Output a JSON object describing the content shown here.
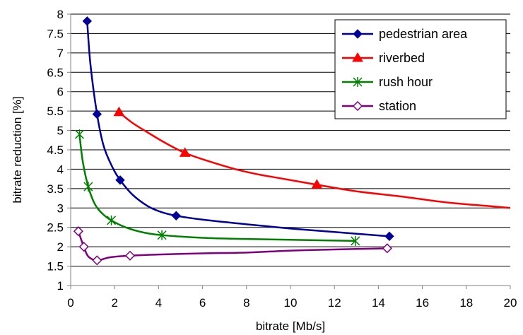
{
  "chart_data": {
    "type": "line",
    "xlabel": "bitrate [Mb/s]",
    "ylabel": "bitrate reduction [%]",
    "xlim": [
      0,
      20
    ],
    "ylim": [
      1,
      8
    ],
    "xticks": [
      0,
      2,
      4,
      6,
      8,
      10,
      12,
      14,
      16,
      18,
      20
    ],
    "yticks": [
      1,
      1.5,
      2,
      2.5,
      3,
      3.5,
      4,
      4.5,
      5,
      5.5,
      6,
      6.5,
      7,
      7.5,
      8
    ],
    "grid": "horizontal",
    "legend_position": "top-right",
    "series": [
      {
        "name": "pedestrian area",
        "color": "#000099",
        "marker": "diamond",
        "points": [
          [
            0.75,
            7.82
          ],
          [
            1.2,
            5.42
          ],
          [
            2.25,
            3.72
          ],
          [
            4.8,
            2.8
          ],
          [
            14.5,
            2.27
          ]
        ],
        "curve": [
          [
            0.75,
            7.82
          ],
          [
            0.9,
            6.7
          ],
          [
            1.2,
            5.42
          ],
          [
            1.5,
            4.6
          ],
          [
            1.9,
            4.05
          ],
          [
            2.25,
            3.72
          ],
          [
            2.8,
            3.35
          ],
          [
            3.5,
            3.05
          ],
          [
            4.1,
            2.9
          ],
          [
            4.8,
            2.8
          ],
          [
            6,
            2.7
          ],
          [
            8,
            2.58
          ],
          [
            10,
            2.47
          ],
          [
            12,
            2.38
          ],
          [
            14.5,
            2.27
          ]
        ]
      },
      {
        "name": "riverbed",
        "color": "#ff0000",
        "marker": "triangle",
        "points": [
          [
            2.2,
            5.47
          ],
          [
            5.2,
            4.42
          ],
          [
            11.2,
            3.6
          ]
        ],
        "curve": [
          [
            2.2,
            5.47
          ],
          [
            2.8,
            5.2
          ],
          [
            3.5,
            4.95
          ],
          [
            4.3,
            4.68
          ],
          [
            5.2,
            4.42
          ],
          [
            6.2,
            4.22
          ],
          [
            7.5,
            4.0
          ],
          [
            8.5,
            3.87
          ],
          [
            9.5,
            3.77
          ],
          [
            11.2,
            3.6
          ],
          [
            13,
            3.43
          ],
          [
            15,
            3.3
          ],
          [
            17,
            3.15
          ],
          [
            19,
            3.05
          ],
          [
            20,
            3.0
          ]
        ]
      },
      {
        "name": "rush hour",
        "color": "#008000",
        "marker": "asterisk",
        "points": [
          [
            0.4,
            4.9
          ],
          [
            0.8,
            3.55
          ],
          [
            1.85,
            2.68
          ],
          [
            4.15,
            2.3
          ],
          [
            12.95,
            2.15
          ]
        ],
        "curve": [
          [
            0.4,
            4.9
          ],
          [
            0.55,
            4.2
          ],
          [
            0.8,
            3.55
          ],
          [
            1.1,
            3.1
          ],
          [
            1.45,
            2.85
          ],
          [
            1.85,
            2.68
          ],
          [
            2.5,
            2.5
          ],
          [
            3.3,
            2.37
          ],
          [
            4.15,
            2.3
          ],
          [
            6,
            2.23
          ],
          [
            8,
            2.2
          ],
          [
            10,
            2.18
          ],
          [
            12.95,
            2.15
          ]
        ]
      },
      {
        "name": "station",
        "color": "#7f007f",
        "marker": "open-diamond",
        "points": [
          [
            0.35,
            2.4
          ],
          [
            0.6,
            2.0
          ],
          [
            1.2,
            1.65
          ],
          [
            2.7,
            1.77
          ],
          [
            14.4,
            1.96
          ]
        ],
        "curve": [
          [
            0.35,
            2.4
          ],
          [
            0.5,
            2.15
          ],
          [
            0.6,
            2.0
          ],
          [
            0.8,
            1.75
          ],
          [
            1.2,
            1.65
          ],
          [
            1.8,
            1.73
          ],
          [
            2.7,
            1.77
          ],
          [
            4,
            1.8
          ],
          [
            6,
            1.83
          ],
          [
            8,
            1.85
          ],
          [
            10,
            1.9
          ],
          [
            12,
            1.93
          ],
          [
            14.4,
            1.96
          ]
        ]
      }
    ]
  }
}
